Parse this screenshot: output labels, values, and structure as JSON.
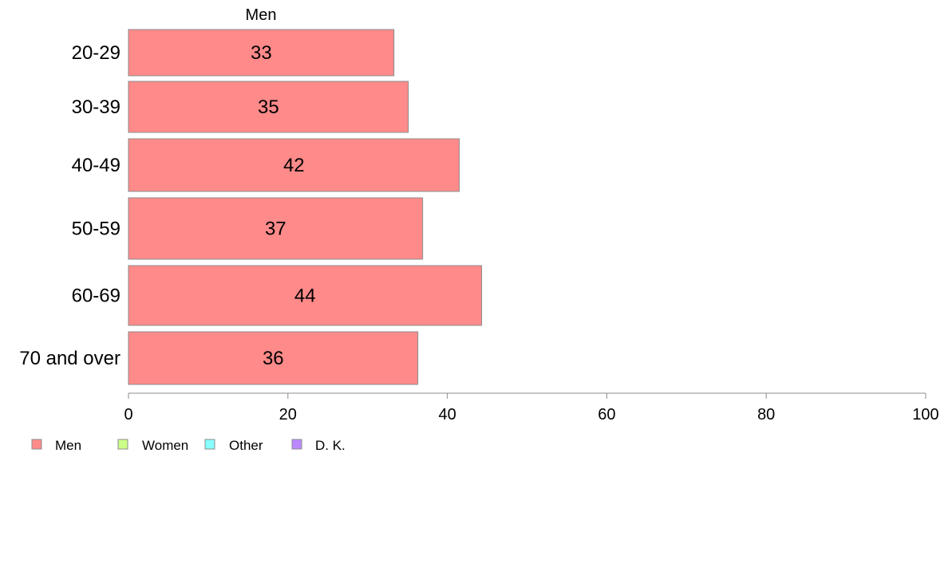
{
  "chart_data": {
    "type": "bar",
    "orientation": "horizontal",
    "title": "Men",
    "categories": [
      "20-29",
      "30-39",
      "40-49",
      "50-59",
      "60-69",
      "70 and over"
    ],
    "series": [
      {
        "name": "Men",
        "values": [
          33.3,
          35.1,
          41.5,
          36.9,
          44.3,
          36.3
        ],
        "labels": [
          "33",
          "35",
          "42",
          "37",
          "44",
          "36"
        ]
      }
    ],
    "xlim": [
      0,
      100
    ],
    "xticks": [
      0,
      20,
      40,
      60,
      80,
      100
    ],
    "grid": false,
    "legend": {
      "position": "bottom-left",
      "items": [
        {
          "name": "Men",
          "color": "#ff8a8a"
        },
        {
          "name": "Women",
          "color": "#ccff88"
        },
        {
          "name": "Other",
          "color": "#88ffff"
        },
        {
          "name": "D. K.",
          "color": "#bb88ff"
        }
      ]
    }
  },
  "colors": {
    "bar_fill": "#ff8a8a",
    "bar_stroke": "#8c8c8c",
    "axis": "#8c8c8c"
  }
}
